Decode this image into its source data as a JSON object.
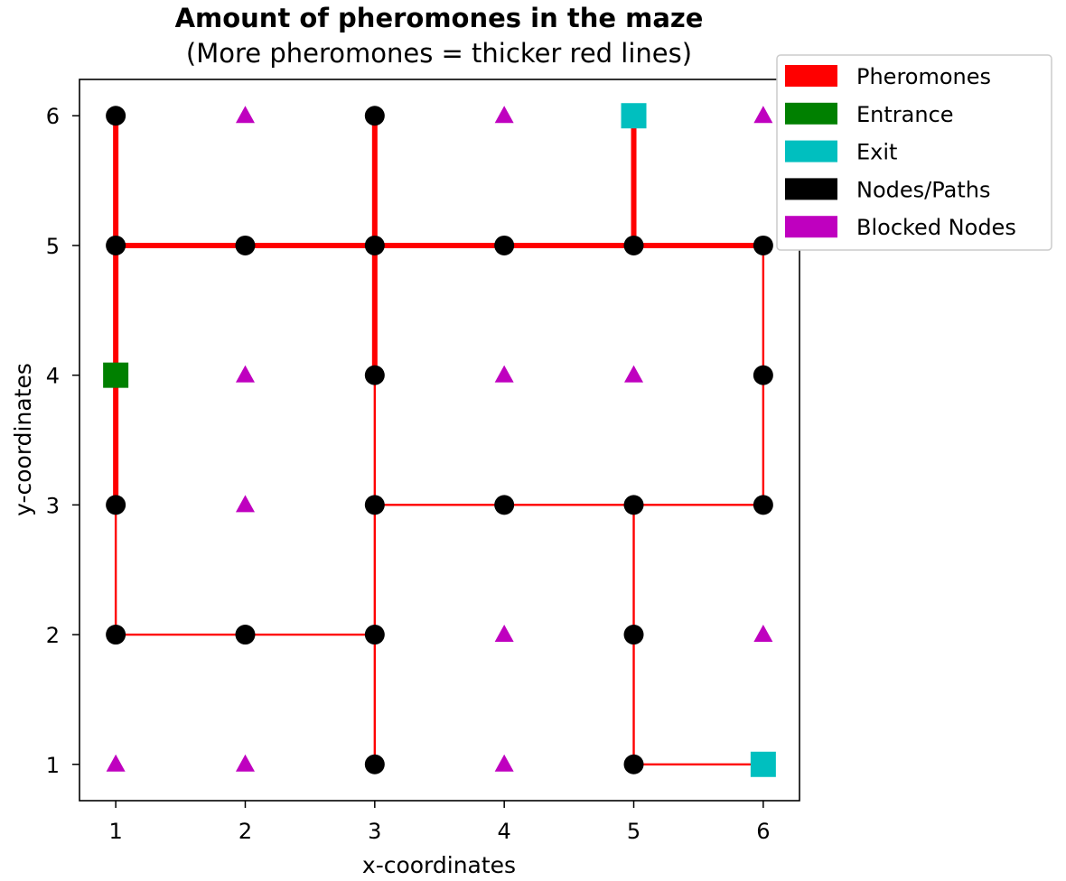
{
  "chart_data": {
    "type": "scatter",
    "title": "Amount of pheromones in the maze",
    "subtitle": "(More pheromones = thicker red lines)",
    "xlabel": "x-coordinates",
    "ylabel": "y-coordinates",
    "xlim": [
      0.72,
      6.28
    ],
    "ylim": [
      0.72,
      6.28
    ],
    "xticks": [
      1,
      2,
      3,
      4,
      5,
      6
    ],
    "yticks": [
      1,
      2,
      3,
      4,
      5,
      6
    ],
    "grid": false,
    "legend": {
      "placement": "outside-top-right",
      "entries": [
        {
          "label": "Pheromones",
          "color": "#ff0000"
        },
        {
          "label": "Entrance",
          "color": "#008000"
        },
        {
          "label": "Exit",
          "color": "#00bfbf"
        },
        {
          "label": "Nodes/Paths",
          "color": "#000000"
        },
        {
          "label": "Blocked Nodes",
          "color": "#bf00bf"
        }
      ]
    },
    "nodes": [
      [
        1,
        6
      ],
      [
        3,
        6
      ],
      [
        5,
        6
      ],
      [
        1,
        5
      ],
      [
        2,
        5
      ],
      [
        3,
        5
      ],
      [
        4,
        5
      ],
      [
        5,
        5
      ],
      [
        6,
        5
      ],
      [
        3,
        4
      ],
      [
        6,
        4
      ],
      [
        1,
        3
      ],
      [
        3,
        3
      ],
      [
        4,
        3
      ],
      [
        5,
        3
      ],
      [
        6,
        3
      ],
      [
        1,
        2
      ],
      [
        2,
        2
      ],
      [
        3,
        2
      ],
      [
        5,
        2
      ],
      [
        3,
        1
      ],
      [
        5,
        1
      ]
    ],
    "blocked_nodes": [
      [
        2,
        6
      ],
      [
        4,
        6
      ],
      [
        6,
        6
      ],
      [
        2,
        4
      ],
      [
        4,
        4
      ],
      [
        5,
        4
      ],
      [
        2,
        3
      ],
      [
        4,
        2
      ],
      [
        6,
        2
      ],
      [
        1,
        1
      ],
      [
        2,
        1
      ],
      [
        4,
        1
      ]
    ],
    "entrance": [
      [
        1,
        4
      ]
    ],
    "exits": [
      [
        5,
        6
      ],
      [
        6,
        1
      ]
    ],
    "pheromone_segments": [
      {
        "from": [
          1,
          6
        ],
        "to": [
          1,
          5
        ],
        "level": 3
      },
      {
        "from": [
          1,
          5
        ],
        "to": [
          1,
          4
        ],
        "level": 3
      },
      {
        "from": [
          1,
          4
        ],
        "to": [
          1,
          3
        ],
        "level": 3
      },
      {
        "from": [
          1,
          3
        ],
        "to": [
          1,
          2
        ],
        "level": 1
      },
      {
        "from": [
          1,
          2
        ],
        "to": [
          3,
          2
        ],
        "level": 1
      },
      {
        "from": [
          1,
          5
        ],
        "to": [
          3,
          5
        ],
        "level": 3
      },
      {
        "from": [
          3,
          6
        ],
        "to": [
          3,
          5
        ],
        "level": 3
      },
      {
        "from": [
          3,
          5
        ],
        "to": [
          3,
          4
        ],
        "level": 3
      },
      {
        "from": [
          3,
          4
        ],
        "to": [
          3,
          1
        ],
        "level": 1
      },
      {
        "from": [
          3,
          5
        ],
        "to": [
          5,
          5
        ],
        "level": 3
      },
      {
        "from": [
          5,
          6
        ],
        "to": [
          5,
          5
        ],
        "level": 3
      },
      {
        "from": [
          5,
          5
        ],
        "to": [
          6,
          5
        ],
        "level": 3
      },
      {
        "from": [
          6,
          5
        ],
        "to": [
          6,
          3
        ],
        "level": 1
      },
      {
        "from": [
          3,
          3
        ],
        "to": [
          6,
          3
        ],
        "level": 1
      },
      {
        "from": [
          5,
          3
        ],
        "to": [
          5,
          1
        ],
        "level": 1
      },
      {
        "from": [
          5,
          1
        ],
        "to": [
          6,
          1
        ],
        "level": 1
      }
    ],
    "colors": {
      "pheromone": "#ff0000",
      "entrance": "#008000",
      "exit": "#00bfbf",
      "node": "#000000",
      "blocked": "#bf00bf"
    }
  }
}
